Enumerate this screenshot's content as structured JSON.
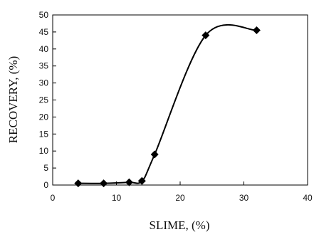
{
  "chart_data": {
    "type": "scatter",
    "title": "",
    "xlabel": "SLIME, (%)",
    "ylabel": "RECOVERY, (%)",
    "xlim": [
      0,
      40
    ],
    "ylim": [
      0,
      50
    ],
    "x_ticks": [
      0,
      10,
      20,
      30,
      40
    ],
    "y_ticks": [
      0,
      5,
      10,
      15,
      20,
      25,
      30,
      35,
      40,
      45,
      50
    ],
    "grid": false,
    "line": "smooth",
    "marker": "diamond",
    "series": [
      {
        "x": [
          4,
          8,
          12,
          14,
          16,
          24,
          32
        ],
        "y": [
          0.5,
          0.5,
          0.8,
          1.2,
          9,
          44,
          45.5
        ]
      }
    ],
    "colors": {
      "line": "#000000",
      "marker": "#000000"
    }
  }
}
